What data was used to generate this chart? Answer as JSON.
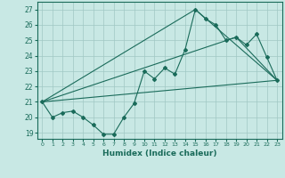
{
  "title": "",
  "xlabel": "Humidex (Indice chaleur)",
  "xlim": [
    -0.5,
    23.5
  ],
  "ylim": [
    18.6,
    27.5
  ],
  "yticks": [
    19,
    20,
    21,
    22,
    23,
    24,
    25,
    26,
    27
  ],
  "xticks": [
    0,
    1,
    2,
    3,
    4,
    5,
    6,
    7,
    8,
    9,
    10,
    11,
    12,
    13,
    14,
    15,
    16,
    17,
    18,
    19,
    20,
    21,
    22,
    23
  ],
  "background_color": "#c8e8e4",
  "grid_color": "#a0c8c4",
  "line_color": "#1a6b5a",
  "main_line": [
    21.0,
    20.0,
    20.3,
    20.4,
    20.0,
    19.5,
    18.9,
    18.9,
    20.0,
    20.9,
    23.0,
    22.5,
    23.2,
    22.8,
    24.4,
    27.0,
    26.4,
    26.0,
    25.0,
    25.2,
    24.7,
    25.4,
    23.9,
    22.4
  ],
  "straight_line_x": [
    0,
    23
  ],
  "straight_line_y": [
    21.0,
    22.4
  ],
  "peak_line_x": [
    0,
    15,
    23
  ],
  "peak_line_y": [
    21.0,
    27.0,
    22.4
  ],
  "mid_line_x": [
    0,
    19,
    23
  ],
  "mid_line_y": [
    21.0,
    25.2,
    22.4
  ]
}
